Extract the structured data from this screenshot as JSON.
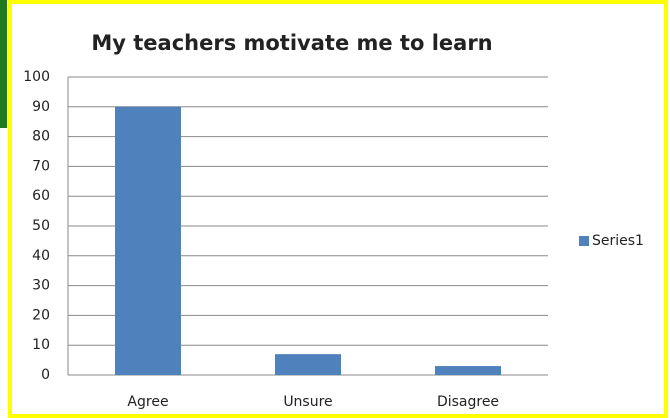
{
  "chart_data": {
    "type": "bar",
    "title": "My teachers motivate me to learn",
    "categories": [
      "Agree",
      "Unsure",
      "Disagree"
    ],
    "series": [
      {
        "name": "Series1",
        "color": "#4f81bd",
        "values": [
          90,
          7,
          3
        ]
      }
    ],
    "ylim": [
      0,
      100
    ],
    "yticks": [
      0,
      10,
      20,
      30,
      40,
      50,
      60,
      70,
      80,
      90,
      100
    ],
    "grid": true,
    "legend": "right"
  }
}
